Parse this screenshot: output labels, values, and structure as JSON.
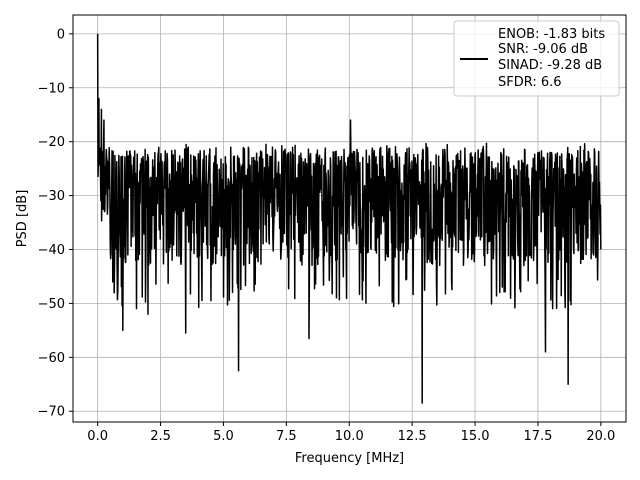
{
  "chart_data": {
    "type": "line",
    "xlabel": "Frequency [MHz]",
    "ylabel": "PSD [dB]",
    "xlim": [
      -0.98,
      21.0
    ],
    "ylim": [
      -72.0,
      3.5
    ],
    "xticks": [
      0.0,
      2.5,
      5.0,
      7.5,
      10.0,
      12.5,
      15.0,
      17.5,
      20.0
    ],
    "xtick_labels": [
      "0.0",
      "2.5",
      "5.0",
      "7.5",
      "10.0",
      "12.5",
      "15.0",
      "17.5",
      "20.0"
    ],
    "yticks": [
      0,
      -10,
      -20,
      -30,
      -40,
      -50,
      -60,
      -70
    ],
    "ytick_labels": [
      "0",
      "−10",
      "−20",
      "−30",
      "−40",
      "−50",
      "−60",
      "−70"
    ],
    "grid": true,
    "legend_position": "upper right",
    "series": [
      {
        "color": "#000000",
        "x_range": [
          0.0,
          20.0
        ],
        "peak": {
          "x": 0.0,
          "y": 0.0
        },
        "noise_floor_mean": -30,
        "upper_envelope": -22,
        "lower_envelope": -45,
        "notable_points": [
          {
            "x": 0.05,
            "y": -12
          },
          {
            "x": 0.15,
            "y": -14
          },
          {
            "x": 0.25,
            "y": -16
          },
          {
            "x": 10.05,
            "y": -16
          },
          {
            "x": 0.5,
            "y": -39
          },
          {
            "x": 0.6,
            "y": -46
          },
          {
            "x": 1.0,
            "y": -55
          },
          {
            "x": 2.0,
            "y": -52
          },
          {
            "x": 3.5,
            "y": -55.5
          },
          {
            "x": 5.6,
            "y": -62.5
          },
          {
            "x": 8.4,
            "y": -56.5
          },
          {
            "x": 12.9,
            "y": -68.5
          },
          {
            "x": 17.8,
            "y": -59
          },
          {
            "x": 18.7,
            "y": -65
          },
          {
            "x": 20.0,
            "y": -40
          }
        ]
      }
    ],
    "legend": {
      "lines": [
        "ENOB: -1.83 bits",
        "SNR: -9.06 dB",
        "SINAD: -9.28 dB",
        "SFDR: 6.6"
      ]
    }
  }
}
